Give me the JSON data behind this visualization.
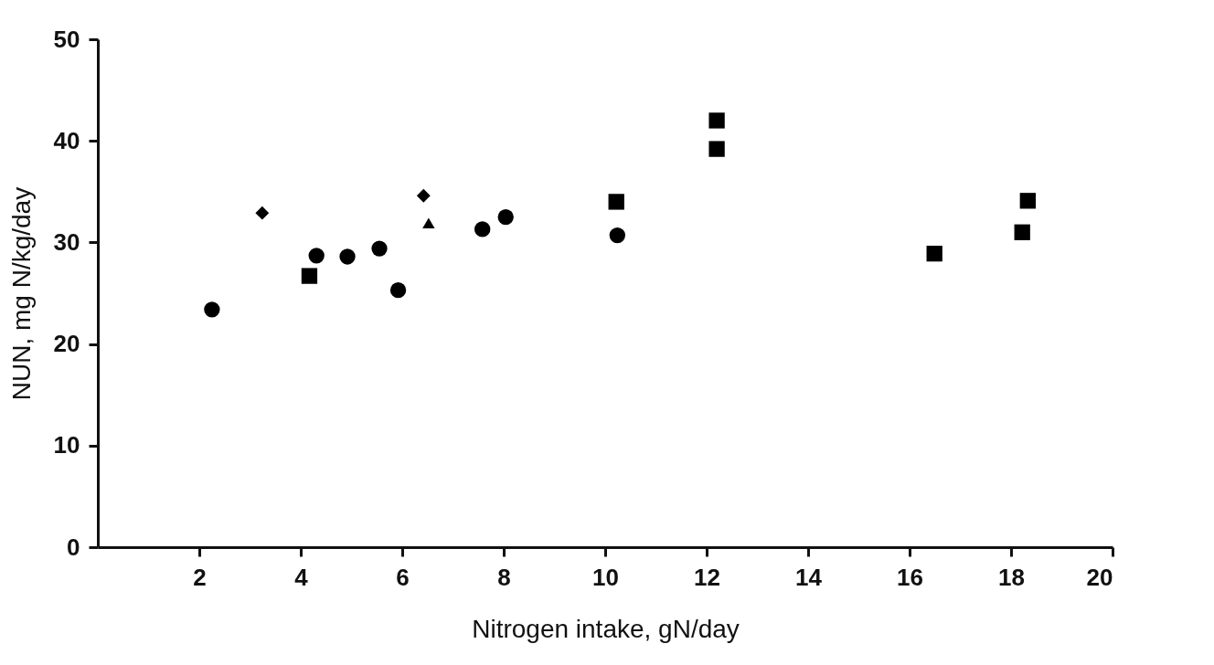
{
  "chart_data": {
    "type": "scatter",
    "xlabel": "Nitrogen intake, gN/day",
    "ylabel": "NUN, mg N/kg/day",
    "xlim": [
      0,
      20
    ],
    "xticks": [
      2,
      4,
      6,
      8,
      10,
      12,
      14,
      16,
      18,
      20
    ],
    "ylim": [
      0,
      50
    ],
    "yticks": [
      0,
      10,
      20,
      30,
      40,
      50
    ],
    "grid": false,
    "series": [
      {
        "color": "#000000",
        "marker": "circle",
        "x": [
          2.25,
          4.31,
          4.92,
          5.92,
          7.58,
          8.04,
          10.24
        ],
        "values": [
          23.4,
          28.7,
          28.6,
          25.3,
          31.3,
          32.5,
          30.7
        ]
      },
      {
        "color": "#000000",
        "marker": "square",
        "x": [
          10.22,
          12.2,
          12.2,
          18.33,
          18.22
        ],
        "values": [
          34.0,
          42.0,
          39.2,
          34.1,
          31.0
        ]
      },
      {
        "color": "#000000",
        "marker": "diamond",
        "x": [
          3.24,
          6.42
        ],
        "values": [
          32.9,
          34.6
        ]
      },
      {
        "color": "#000000",
        "marker": "square",
        "x": [
          4.17,
          16.49
        ],
        "values": [
          26.7,
          28.9
        ]
      },
      {
        "color": "#000000",
        "marker": "circle",
        "x": [
          5.55
        ],
        "values": [
          29.4
        ]
      },
      {
        "color": "#000000",
        "marker": "triangle",
        "x": [
          6.52
        ],
        "values": [
          31.9
        ]
      }
    ]
  }
}
